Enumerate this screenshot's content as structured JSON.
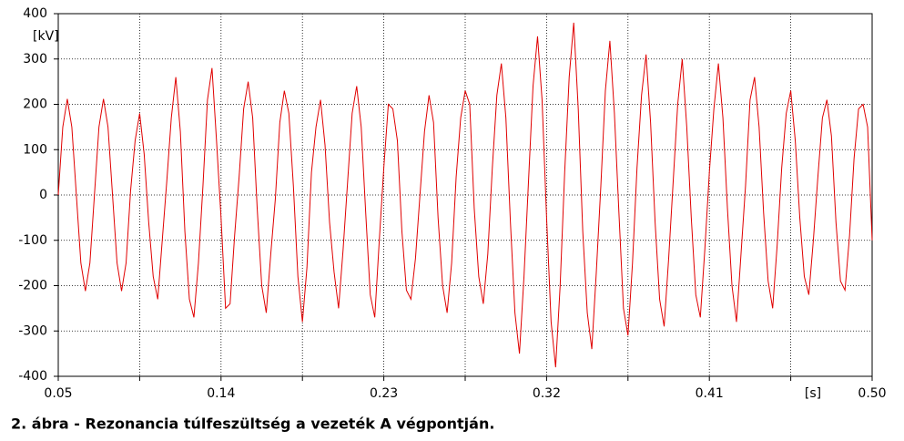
{
  "chart_data": {
    "type": "line",
    "caption": "2. ábra - Rezonancia túlfeszültség a vezeték A végpontján.",
    "y_label": "[kV]",
    "x_label": "[s]",
    "color": "#e00000",
    "grid": true,
    "xlim": [
      0.05,
      0.5
    ],
    "ylim": [
      -400,
      400
    ],
    "xticks": [
      0.05,
      0.14,
      0.23,
      0.32,
      0.41,
      {
        "value": 0.5,
        "label": "0.50"
      }
    ],
    "xminorticks": [
      0.095,
      0.185,
      0.275,
      0.365,
      0.455
    ],
    "yticks": [
      -400,
      -300,
      -200,
      -100,
      0,
      100,
      200,
      300,
      400
    ],
    "x": [
      0.05,
      0.0525,
      0.055,
      0.0575,
      0.06,
      0.0625,
      0.065,
      0.0675,
      0.07,
      0.0725,
      0.075,
      0.0775,
      0.08,
      0.0825,
      0.085,
      0.0875,
      0.09,
      0.0925,
      0.095,
      0.0975,
      0.1,
      0.1025,
      0.105,
      0.1075,
      0.11,
      0.1125,
      0.115,
      0.1175,
      0.12,
      0.1225,
      0.125,
      0.1275,
      0.13,
      0.1325,
      0.135,
      0.1375,
      0.14,
      0.1425,
      0.145,
      0.1475,
      0.15,
      0.1525,
      0.155,
      0.1575,
      0.16,
      0.1625,
      0.165,
      0.1675,
      0.17,
      0.1725,
      0.175,
      0.1775,
      0.18,
      0.1825,
      0.185,
      0.1875,
      0.19,
      0.1925,
      0.195,
      0.1975,
      0.2,
      0.2025,
      0.205,
      0.2075,
      0.21,
      0.2125,
      0.215,
      0.2175,
      0.22,
      0.2225,
      0.225,
      0.2275,
      0.23,
      0.2325,
      0.235,
      0.2375,
      0.24,
      0.2425,
      0.245,
      0.2475,
      0.25,
      0.2525,
      0.255,
      0.2575,
      0.26,
      0.2625,
      0.265,
      0.2675,
      0.27,
      0.2725,
      0.275,
      0.2775,
      0.28,
      0.2825,
      0.285,
      0.2875,
      0.29,
      0.2925,
      0.295,
      0.2975,
      0.3,
      0.3025,
      0.305,
      0.3075,
      0.31,
      0.3125,
      0.315,
      0.3175,
      0.32,
      0.3225,
      0.325,
      0.3275,
      0.33,
      0.3325,
      0.335,
      0.3375,
      0.34,
      0.3425,
      0.345,
      0.3475,
      0.35,
      0.3525,
      0.355,
      0.3575,
      0.36,
      0.3625,
      0.365,
      0.3675,
      0.37,
      0.3725,
      0.375,
      0.3775,
      0.38,
      0.3825,
      0.385,
      0.3875,
      0.39,
      0.3925,
      0.395,
      0.3975,
      0.4,
      0.4025,
      0.405,
      0.4075,
      0.41,
      0.4125,
      0.415,
      0.4175,
      0.42,
      0.4225,
      0.425,
      0.4275,
      0.43,
      0.4325,
      0.435,
      0.4375,
      0.44,
      0.4425,
      0.445,
      0.4475,
      0.45,
      0.4525,
      0.455,
      0.4575,
      0.46,
      0.4625,
      0.465,
      0.4675,
      0.47,
      0.4725,
      0.475,
      0.4775,
      0.48,
      0.4825,
      0.485,
      0.4875,
      0.49,
      0.4925,
      0.495,
      0.4975,
      0.5
    ],
    "values": [
      0,
      150,
      212,
      150,
      0,
      -150,
      -212,
      -150,
      0,
      150,
      212,
      150,
      0,
      -150,
      -212,
      -150,
      10,
      120,
      180,
      90,
      -60,
      -180,
      -230,
      -100,
      30,
      170,
      260,
      140,
      -80,
      -230,
      -270,
      -150,
      20,
      210,
      280,
      120,
      -50,
      -250,
      -240,
      -90,
      40,
      190,
      250,
      170,
      -30,
      -200,
      -260,
      -130,
      -10,
      160,
      230,
      180,
      20,
      -180,
      -280,
      -160,
      50,
      150,
      210,
      110,
      -60,
      -170,
      -250,
      -120,
      30,
      180,
      240,
      150,
      -40,
      -220,
      -270,
      -100,
      60,
      200,
      190,
      120,
      -80,
      -210,
      -230,
      -140,
      0,
      140,
      220,
      160,
      -50,
      -200,
      -260,
      -150,
      40,
      170,
      230,
      200,
      -30,
      -180,
      -240,
      -130,
      60,
      220,
      290,
      170,
      -60,
      -260,
      -350,
      -180,
      30,
      240,
      350,
      210,
      -50,
      -280,
      -380,
      -200,
      50,
      260,
      380,
      190,
      -80,
      -260,
      -340,
      -170,
      20,
      230,
      340,
      180,
      -40,
      -250,
      -310,
      -150,
      60,
      220,
      310,
      160,
      -60,
      -230,
      -290,
      -140,
      30,
      200,
      300,
      150,
      -50,
      -220,
      -270,
      -120,
      50,
      190,
      290,
      170,
      -30,
      -200,
      -280,
      -130,
      20,
      210,
      260,
      150,
      -40,
      -190,
      -250,
      -110,
      60,
      180,
      230,
      120,
      -50,
      -180,
      -220,
      -100,
      40,
      170,
      210,
      130,
      -60,
      -190,
      -210,
      -90,
      80,
      190,
      200,
      150,
      -100
    ]
  }
}
